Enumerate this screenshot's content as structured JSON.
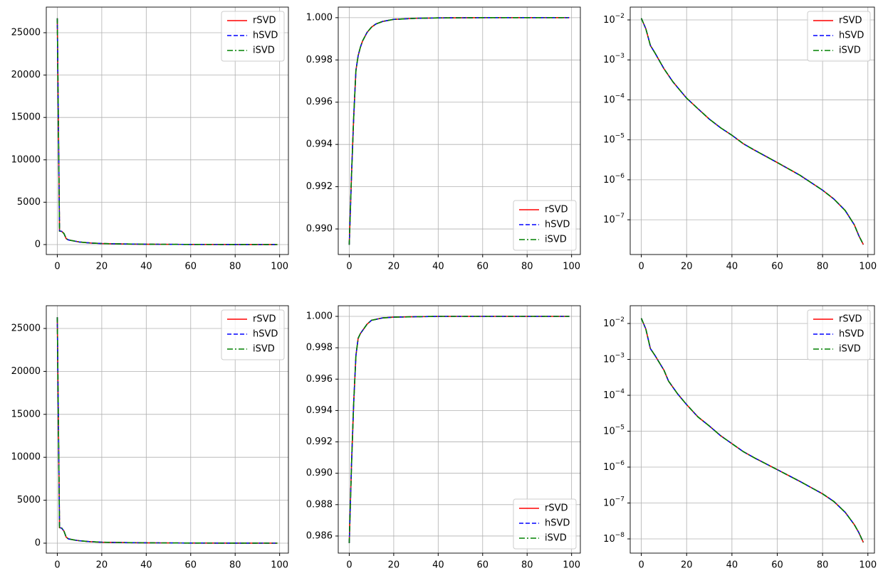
{
  "chart_data": [
    {
      "type": "line",
      "xlim": [
        -4.95,
        103.95
      ],
      "xticks": [
        0,
        20,
        40,
        60,
        80,
        100
      ],
      "ylim": [
        -1175,
        28020
      ],
      "yticks": [
        0,
        5000,
        10000,
        15000,
        20000,
        25000
      ],
      "log_y": false,
      "grid": true,
      "legend": "upper right",
      "x": [
        0,
        1,
        2,
        3,
        4,
        5,
        6,
        8,
        10,
        15,
        20,
        30,
        40,
        60,
        80,
        99
      ],
      "series": [
        {
          "name": "rSVD",
          "color": "#ff0000",
          "dash": "solid",
          "values": [
            26700,
            1600,
            1550,
            1300,
            700,
            550,
            500,
            400,
            300,
            180,
            120,
            70,
            40,
            15,
            5,
            0
          ]
        },
        {
          "name": "hSVD",
          "color": "#0000ff",
          "dash": "dashed",
          "values": [
            26700,
            1600,
            1550,
            1300,
            700,
            550,
            500,
            400,
            300,
            180,
            120,
            70,
            40,
            15,
            5,
            0
          ]
        },
        {
          "name": "iSVD",
          "color": "#008000",
          "dash": "dashdot",
          "values": [
            26700,
            1600,
            1550,
            1300,
            700,
            550,
            500,
            400,
            300,
            180,
            120,
            70,
            40,
            15,
            5,
            0
          ]
        }
      ]
    },
    {
      "type": "line",
      "xlim": [
        -4.95,
        103.95
      ],
      "xticks": [
        0,
        20,
        40,
        60,
        80,
        100
      ],
      "ylim": [
        0.98879,
        1.0005
      ],
      "yticks": [
        {
          "value": 0.99,
          "label": "0.990"
        },
        0.992,
        0.994,
        0.996,
        0.998,
        {
          "value": 1,
          "label": "1.000"
        }
      ],
      "log_y": false,
      "grid": true,
      "legend": "lower right",
      "x": [
        0,
        1,
        2,
        3,
        4,
        5,
        6,
        8,
        10,
        12,
        15,
        20,
        30,
        40,
        60,
        99
      ],
      "series": [
        {
          "name": "rSVD",
          "color": "#ff0000",
          "dash": "solid",
          "values": [
            0.98925,
            0.9925,
            0.9953,
            0.9975,
            0.9982,
            0.9986,
            0.9989,
            0.9993,
            0.99955,
            0.9997,
            0.99982,
            0.99992,
            0.99997,
            0.99999,
            1,
            1
          ]
        },
        {
          "name": "hSVD",
          "color": "#0000ff",
          "dash": "dashed",
          "values": [
            0.98925,
            0.9925,
            0.9953,
            0.9975,
            0.9982,
            0.9986,
            0.9989,
            0.9993,
            0.99955,
            0.9997,
            0.99982,
            0.99992,
            0.99997,
            0.99999,
            1,
            1
          ]
        },
        {
          "name": "iSVD",
          "color": "#008000",
          "dash": "dashdot",
          "values": [
            0.98925,
            0.9925,
            0.9953,
            0.9975,
            0.9982,
            0.9986,
            0.9989,
            0.9993,
            0.99955,
            0.9997,
            0.99982,
            0.99992,
            0.99997,
            0.99999,
            1,
            1
          ]
        }
      ]
    },
    {
      "type": "line",
      "xlim": [
        -4.9,
        102.9
      ],
      "xticks": [
        0,
        20,
        40,
        60,
        80,
        100
      ],
      "ylim": [
        1.35e-08,
        0.0209
      ],
      "yticks": [
        {
          "value": 1e-07,
          "label": "10−7"
        },
        {
          "value": 1e-06,
          "label": "10−6"
        },
        {
          "value": 1e-05,
          "label": "10−5"
        },
        {
          "value": 0.0001,
          "label": "10−4"
        },
        {
          "value": 0.001,
          "label": "10−3"
        },
        {
          "value": 0.01,
          "label": "10−2"
        }
      ],
      "log_y": true,
      "grid": true,
      "legend": "upper right",
      "x": [
        0,
        2,
        4,
        6,
        10,
        14,
        18,
        20,
        25,
        30,
        35,
        40,
        45,
        50,
        60,
        70,
        80,
        85,
        90,
        94,
        96,
        98
      ],
      "series": [
        {
          "name": "rSVD",
          "color": "#ff0000",
          "dash": "solid",
          "values": [
            0.011,
            0.006,
            0.0023,
            0.0015,
            0.0006,
            0.00028,
            0.00015,
            0.00011,
            6e-05,
            3.3e-05,
            2e-05,
            1.3e-05,
            8e-06,
            5.5e-06,
            2.7e-06,
            1.3e-06,
            5.5e-07,
            3.3e-07,
            1.7e-07,
            7.5e-08,
            4e-08,
            2.4e-08
          ]
        },
        {
          "name": "hSVD",
          "color": "#0000ff",
          "dash": "dashed",
          "values": [
            0.011,
            0.006,
            0.0023,
            0.0015,
            0.0006,
            0.00028,
            0.00015,
            0.00011,
            6e-05,
            3.3e-05,
            2e-05,
            1.3e-05,
            8e-06,
            5.5e-06,
            2.7e-06,
            1.3e-06,
            5.5e-07,
            3.3e-07,
            1.7e-07,
            7.5e-08,
            4e-08,
            2.4e-08
          ]
        },
        {
          "name": "iSVD",
          "color": "#008000",
          "dash": "dashdot",
          "values": [
            0.011,
            0.006,
            0.0023,
            0.0015,
            0.0006,
            0.00028,
            0.00015,
            0.00011,
            6e-05,
            3.3e-05,
            2e-05,
            1.3e-05,
            8e-06,
            5.5e-06,
            2.7e-06,
            1.3e-06,
            5.5e-07,
            3.3e-07,
            1.7e-07,
            7.5e-08,
            4e-08,
            2.4e-08
          ]
        }
      ]
    },
    {
      "type": "line",
      "xlim": [
        -4.95,
        103.95
      ],
      "xticks": [
        0,
        20,
        40,
        60,
        80,
        100
      ],
      "ylim": [
        -1159,
        27649
      ],
      "yticks": [
        0,
        5000,
        10000,
        15000,
        20000,
        25000
      ],
      "log_y": false,
      "grid": true,
      "legend": "upper right",
      "x": [
        0,
        1,
        2,
        3,
        4,
        5,
        6,
        8,
        10,
        15,
        20,
        30,
        40,
        60,
        80,
        99
      ],
      "series": [
        {
          "name": "rSVD",
          "color": "#ff0000",
          "dash": "solid",
          "values": [
            26300,
            1800,
            1750,
            1400,
            700,
            500,
            450,
            350,
            280,
            170,
            110,
            65,
            40,
            15,
            5,
            0
          ]
        },
        {
          "name": "hSVD",
          "color": "#0000ff",
          "dash": "dashed",
          "values": [
            26300,
            1800,
            1750,
            1400,
            700,
            500,
            450,
            350,
            280,
            170,
            110,
            65,
            40,
            15,
            5,
            0
          ]
        },
        {
          "name": "iSVD",
          "color": "#008000",
          "dash": "dashdot",
          "values": [
            26300,
            1800,
            1750,
            1400,
            700,
            500,
            450,
            350,
            280,
            170,
            110,
            65,
            40,
            15,
            5,
            0
          ]
        }
      ]
    },
    {
      "type": "line",
      "xlim": [
        -4.95,
        103.95
      ],
      "xticks": [
        0,
        20,
        40,
        60,
        80,
        100
      ],
      "ylim": [
        0.98491,
        1.00068
      ],
      "yticks": [
        0.986,
        0.988,
        {
          "value": 0.99,
          "label": "0.990"
        },
        0.992,
        0.994,
        0.996,
        0.998,
        {
          "value": 1,
          "label": "1.000"
        }
      ],
      "log_y": false,
      "grid": true,
      "legend": "lower right",
      "x": [
        0,
        1,
        2,
        3,
        4,
        5,
        6,
        8,
        10,
        15,
        20,
        30,
        40,
        99
      ],
      "series": [
        {
          "name": "rSVD",
          "color": "#ff0000",
          "dash": "solid",
          "values": [
            0.98555,
            0.9905,
            0.9945,
            0.9975,
            0.9986,
            0.9989,
            0.9991,
            0.9995,
            0.99975,
            0.9999,
            0.99995,
            0.99998,
            1,
            1
          ]
        },
        {
          "name": "hSVD",
          "color": "#0000ff",
          "dash": "dashed",
          "values": [
            0.98555,
            0.9905,
            0.9945,
            0.9975,
            0.9986,
            0.9989,
            0.9991,
            0.9995,
            0.99975,
            0.9999,
            0.99995,
            0.99998,
            1,
            1
          ]
        },
        {
          "name": "iSVD",
          "color": "#008000",
          "dash": "dashdot",
          "values": [
            0.98555,
            0.9905,
            0.9945,
            0.9975,
            0.9986,
            0.9989,
            0.9991,
            0.9995,
            0.99975,
            0.9999,
            0.99995,
            0.99998,
            1,
            1
          ]
        }
      ]
    },
    {
      "type": "line",
      "xlim": [
        -4.9,
        102.9
      ],
      "xticks": [
        0,
        20,
        40,
        60,
        80,
        100
      ],
      "ylim": [
        4.02e-09,
        0.0313
      ],
      "yticks": [
        {
          "value": 1e-08,
          "label": "10−8"
        },
        {
          "value": 1e-07,
          "label": "10−7"
        },
        {
          "value": 1e-06,
          "label": "10−6"
        },
        {
          "value": 1e-05,
          "label": "10−5"
        },
        {
          "value": 0.0001,
          "label": "10−4"
        },
        {
          "value": 0.001,
          "label": "10−3"
        },
        {
          "value": 0.01,
          "label": "10−2"
        }
      ],
      "log_y": true,
      "grid": true,
      "legend": "upper right",
      "x": [
        0,
        2,
        4,
        6,
        10,
        12,
        16,
        20,
        25,
        30,
        35,
        40,
        45,
        50,
        60,
        70,
        80,
        85,
        90,
        94,
        96,
        98
      ],
      "series": [
        {
          "name": "rSVD",
          "color": "#ff0000",
          "dash": "solid",
          "values": [
            0.014,
            0.007,
            0.002,
            0.0013,
            0.0005,
            0.00025,
            0.00011,
            5.5e-05,
            2.5e-05,
            1.4e-05,
            7.5e-06,
            4.5e-06,
            2.7e-06,
            1.8e-06,
            8.5e-07,
            4e-07,
            1.8e-07,
            1.1e-07,
            5.5e-08,
            2.5e-08,
            1.5e-08,
            8e-09
          ]
        },
        {
          "name": "hSVD",
          "color": "#0000ff",
          "dash": "dashed",
          "values": [
            0.014,
            0.007,
            0.002,
            0.0013,
            0.0005,
            0.00025,
            0.00011,
            5.5e-05,
            2.5e-05,
            1.4e-05,
            7.5e-06,
            4.5e-06,
            2.7e-06,
            1.8e-06,
            8.5e-07,
            4e-07,
            1.8e-07,
            1.1e-07,
            5.5e-08,
            2.5e-08,
            1.5e-08,
            8e-09
          ]
        },
        {
          "name": "iSVD",
          "color": "#008000",
          "dash": "dashdot",
          "values": [
            0.014,
            0.007,
            0.002,
            0.0013,
            0.0005,
            0.00025,
            0.00011,
            5.5e-05,
            2.5e-05,
            1.4e-05,
            7.5e-06,
            4.5e-06,
            2.7e-06,
            1.8e-06,
            8.5e-07,
            4e-07,
            1.8e-07,
            1.1e-07,
            5.5e-08,
            2.5e-08,
            1.5e-08,
            8e-09
          ]
        }
      ]
    }
  ]
}
